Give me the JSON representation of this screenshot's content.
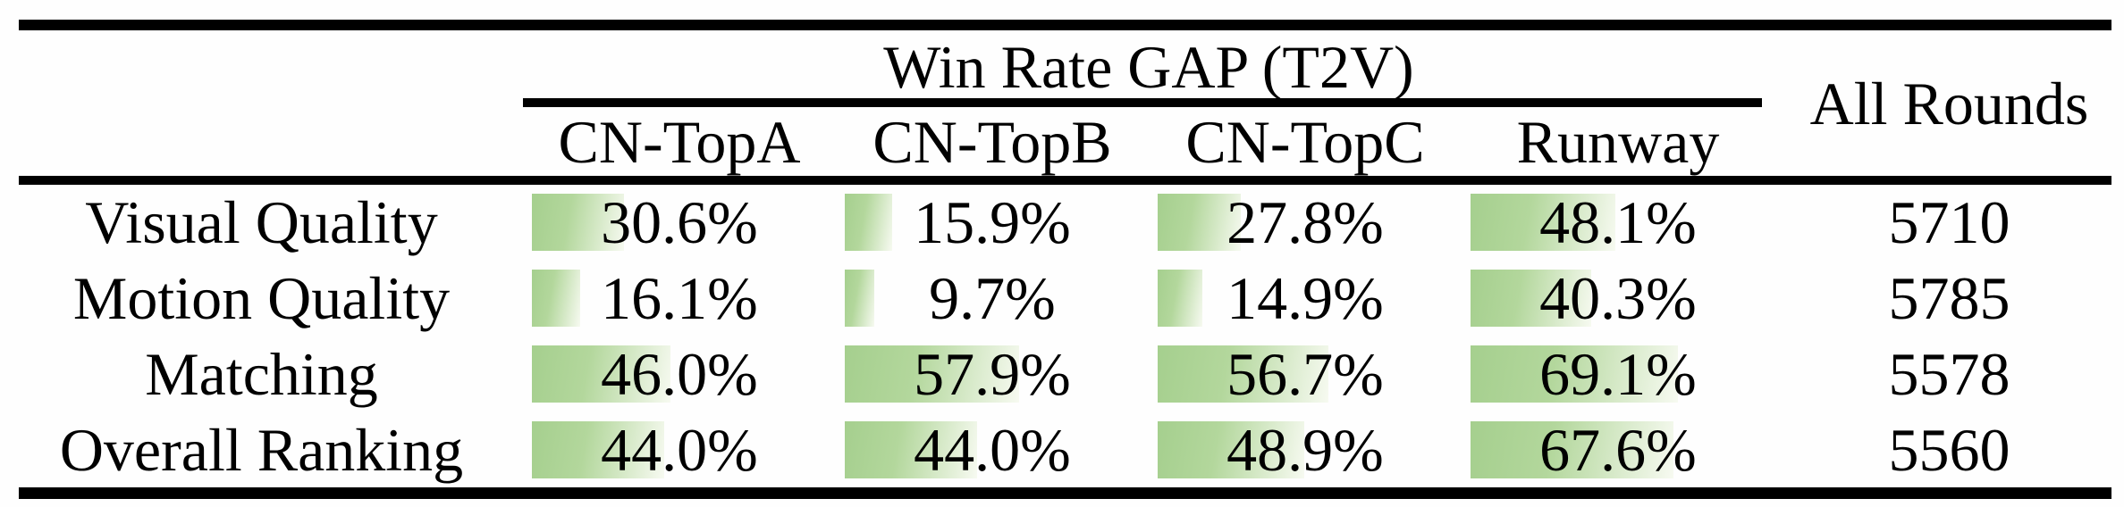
{
  "page": {
    "background": "#fefefe",
    "rule_color": "#000000",
    "bar_color_start": "#a5cf8e",
    "bar_color_mid": "#b3d79c",
    "bar_color_end": "#f7faf1"
  },
  "table": {
    "group_header": "Win Rate GAP (T2V)",
    "all_rounds_header": "All Rounds",
    "columns": [
      "CN-TopA",
      "CN-TopB",
      "CN-TopC",
      "Runway"
    ],
    "rows": [
      {
        "label": "Visual Quality",
        "cells": [
          {
            "text": "30.6%",
            "pct": 30.6
          },
          {
            "text": "15.9%",
            "pct": 15.9
          },
          {
            "text": "27.8%",
            "pct": 27.8
          },
          {
            "text": "48.1%",
            "pct": 48.1
          }
        ],
        "all_rounds": "5710"
      },
      {
        "label": "Motion Quality",
        "cells": [
          {
            "text": "16.1%",
            "pct": 16.1
          },
          {
            "text": "9.7%",
            "pct": 9.7
          },
          {
            "text": "14.9%",
            "pct": 14.9
          },
          {
            "text": "40.3%",
            "pct": 40.3
          }
        ],
        "all_rounds": "5785"
      },
      {
        "label": "Matching",
        "cells": [
          {
            "text": "46.0%",
            "pct": 46.0
          },
          {
            "text": "57.9%",
            "pct": 57.9
          },
          {
            "text": "56.7%",
            "pct": 56.7
          },
          {
            "text": "69.1%",
            "pct": 69.1
          }
        ],
        "all_rounds": "5578"
      },
      {
        "label": "Overall Ranking",
        "cells": [
          {
            "text": "44.0%",
            "pct": 44.0
          },
          {
            "text": "44.0%",
            "pct": 44.0
          },
          {
            "text": "48.9%",
            "pct": 48.9
          },
          {
            "text": "67.6%",
            "pct": 67.6
          }
        ],
        "all_rounds": "5560"
      }
    ]
  },
  "chart_data": {
    "type": "table",
    "title": "Win Rate GAP (T2V)",
    "columns": [
      "CN-TopA",
      "CN-TopB",
      "CN-TopC",
      "Runway",
      "All Rounds"
    ],
    "row_labels": [
      "Visual Quality",
      "Motion Quality",
      "Matching",
      "Overall Ranking"
    ],
    "series": [
      {
        "name": "CN-TopA",
        "values": [
          30.6,
          16.1,
          46.0,
          44.0
        ],
        "unit": "%"
      },
      {
        "name": "CN-TopB",
        "values": [
          15.9,
          9.7,
          57.9,
          44.0
        ],
        "unit": "%"
      },
      {
        "name": "CN-TopC",
        "values": [
          27.8,
          14.9,
          56.7,
          48.9
        ],
        "unit": "%"
      },
      {
        "name": "Runway",
        "values": [
          48.1,
          40.3,
          69.1,
          67.6
        ],
        "unit": "%"
      },
      {
        "name": "All Rounds",
        "values": [
          5710,
          5785,
          5578,
          5560
        ],
        "unit": "count"
      }
    ],
    "bar_scale": "in-cell data bars, width proportional to percent, green-to-white gradient"
  }
}
